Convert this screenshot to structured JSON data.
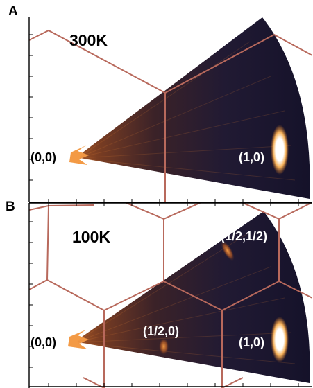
{
  "panels": [
    {
      "letter": "A",
      "temperature": "300K",
      "peaks": [
        "(0,0)",
        "(1,0)"
      ]
    },
    {
      "letter": "B",
      "temperature": "100K",
      "peaks": [
        "(0,0)",
        "(1/2,0)",
        "(1,0)",
        "(1/2,1/2)"
      ]
    }
  ],
  "colors": {
    "hexagon_lines": "#b8695c",
    "map_dark": "#1b1530",
    "map_glow": "#e07a20",
    "peak": "#ffffff"
  }
}
